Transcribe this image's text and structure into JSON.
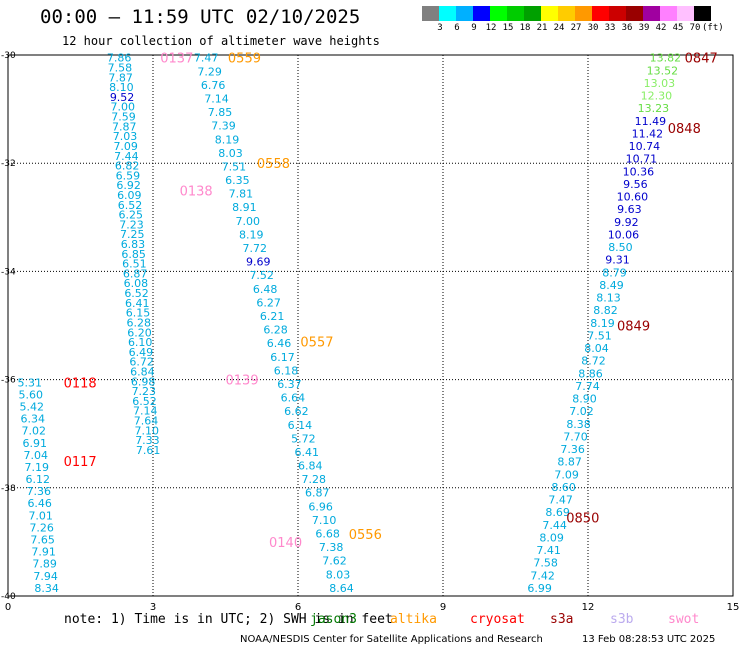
{
  "header": {
    "title": "00:00 – 11:59 UTC 02/10/2025",
    "subtitle": "12 hour collection of altimeter wave heights"
  },
  "colorbar": {
    "colors": [
      "#808080",
      "#00ffff",
      "#00b0ff",
      "#0000ff",
      "#00ff00",
      "#00cc00",
      "#00a000",
      "#ffff00",
      "#ffcc00",
      "#ff9900",
      "#ff0000",
      "#cc0000",
      "#990000",
      "#a000a0",
      "#ff80ff",
      "#ffc0ff",
      "#000000"
    ],
    "labels": [
      "3",
      "6",
      "9",
      "12",
      "15",
      "18",
      "21",
      "24",
      "27",
      "30",
      "33",
      "36",
      "39",
      "42",
      "45",
      "70",
      "(ft)"
    ]
  },
  "chart_data": {
    "type": "scatter",
    "title": "00:00 – 11:59 UTC 02/10/2025",
    "subtitle": "12 hour collection of altimeter wave heights",
    "xlim": [
      0,
      15
    ],
    "ylim": [
      -40,
      -30
    ],
    "x_ticks": [
      "0",
      "3",
      "6",
      "9",
      "12",
      "15"
    ],
    "y_ticks": [
      "-30",
      "-32",
      "-34",
      "-36",
      "-38",
      "-40"
    ],
    "passes": [
      {
        "label": "0137",
        "label_x": 3.15,
        "label_y": -30.05,
        "label_color": "#ff88cc",
        "start_x": 2.3,
        "start_y": -30.05,
        "end_x": 2.9,
        "end_y": -37.3,
        "values": [
          "7.86",
          "7.58",
          "7.87",
          "8.10",
          "9.52",
          "7.00",
          "7.59",
          "7.87",
          "7.03",
          "7.09",
          "7.44",
          "6.82",
          "6.59",
          "6.92",
          "6.09",
          "6.52",
          "6.25",
          "7.23",
          "7.25",
          "6.83",
          "6.85",
          "6.51",
          "6.87",
          "6.08",
          "6.52",
          "6.41",
          "6.15",
          "6.28",
          "6.20",
          "6.10",
          "6.49",
          "6.72",
          "6.84",
          "6.98",
          "7.23",
          "6.52",
          "7.14",
          "7.64",
          "7.10",
          "7.33",
          "7.61"
        ],
        "end_label": "0140",
        "end_label_x": 5.4,
        "end_label_y": -39.0
      },
      {
        "label": "0559",
        "label_x": 4.55,
        "label_y": -30.05,
        "label_color": "#ff9900",
        "start_x": 4.1,
        "start_y": -30.05,
        "end_x": 6.9,
        "end_y": -39.85,
        "values": [
          "7.47",
          "7.29",
          "6.76",
          "7.14",
          "7.85",
          "7.39",
          "8.19",
          "8.03",
          "7.51",
          "6.35",
          "7.81",
          "8.91",
          "7.00",
          "8.19",
          "7.72",
          "9.69",
          "7.52",
          "6.48",
          "6.27",
          "6.21",
          "6.28",
          "6.46",
          "6.17",
          "6.18",
          "6.37",
          "6.64",
          "6.62",
          "6.14",
          "5.72",
          "6.41",
          "6.84",
          "7.28",
          "6.87",
          "6.96",
          "7.10",
          "6.68",
          "7.38",
          "7.62",
          "8.03",
          "8.64"
        ]
      },
      {
        "label": "0118",
        "label_x": 1.15,
        "label_y": -36.05,
        "label_color": "#ff0000",
        "start_x": 0.45,
        "start_y": -36.05,
        "end_x": 0.8,
        "end_y": -39.85,
        "values": [
          "5.31",
          "5.60",
          "5.42",
          "6.34",
          "7.02",
          "6.91",
          "7.04",
          "7.19",
          "6.12",
          "7.36",
          "6.46",
          "7.01",
          "7.26",
          "7.65",
          "7.91",
          "7.89",
          "7.94",
          "8.34"
        ]
      },
      {
        "label": "0117",
        "label_x": 1.15,
        "label_y": -37.5,
        "label_color": "#ff0000"
      },
      {
        "label": "0138",
        "label_x": 3.55,
        "label_y": -32.5,
        "label_color": "#ff88cc"
      },
      {
        "label": "0139",
        "label_x": 4.5,
        "label_y": -36.0,
        "label_color": "#ff88cc"
      },
      {
        "label": "0558",
        "label_x": 5.15,
        "label_y": -32.0,
        "label_color": "#ff9900"
      },
      {
        "label": "0557",
        "label_x": 6.05,
        "label_y": -35.3,
        "label_color": "#ff9900"
      },
      {
        "label": "0556",
        "label_x": 7.05,
        "label_y": -38.85,
        "label_color": "#ff9900"
      },
      {
        "label": "0847",
        "label_x": 14.0,
        "label_y": -30.05,
        "label_color": "#990000",
        "start_x": 13.6,
        "start_y": -30.05,
        "end_x": 11.0,
        "end_y": -39.85,
        "values": [
          "13.82",
          "13.52",
          "13.03",
          "12.30",
          "13.23",
          "11.49",
          "11.42",
          "10.74",
          "10.71",
          "10.36",
          "9.56",
          "10.60",
          "9.63",
          "9.92",
          "10.06",
          "8.50",
          "9.31",
          "8.79",
          "8.49",
          "8.13",
          "8.82",
          "8.19",
          "7.51",
          "8.04",
          "8.72",
          "8.86",
          "7.74",
          "8.90",
          "7.02",
          "8.38",
          "7.70",
          "7.36",
          "8.87",
          "7.09",
          "8.60",
          "7.47",
          "8.69",
          "7.44",
          "8.09",
          "7.41",
          "7.58",
          "7.42",
          "6.99"
        ]
      },
      {
        "label": "0848",
        "label_x": 13.65,
        "label_y": -31.35,
        "label_color": "#990000"
      },
      {
        "label": "0849",
        "label_x": 12.6,
        "label_y": -35.0,
        "label_color": "#990000"
      },
      {
        "label": "0850",
        "label_x": 11.55,
        "label_y": -38.55,
        "label_color": "#990000"
      }
    ]
  },
  "note": {
    "text": "note: 1) Time is in UTC; 2) SWH is in feet",
    "satellites": [
      {
        "name": "jason3",
        "color": "#007700"
      },
      {
        "name": "altika",
        "color": "#ff9900"
      },
      {
        "name": "cryosat",
        "color": "#ff0000"
      },
      {
        "name": "s3a",
        "color": "#990000"
      },
      {
        "name": "s3b",
        "color": "#bbaaee"
      },
      {
        "name": "swot",
        "color": "#ff88cc"
      }
    ]
  },
  "footer": {
    "credit": "NOAA/NESDIS Center for Satellite Applications and Research",
    "timestamp": "13 Feb 08:28:53 UTC 2025"
  }
}
